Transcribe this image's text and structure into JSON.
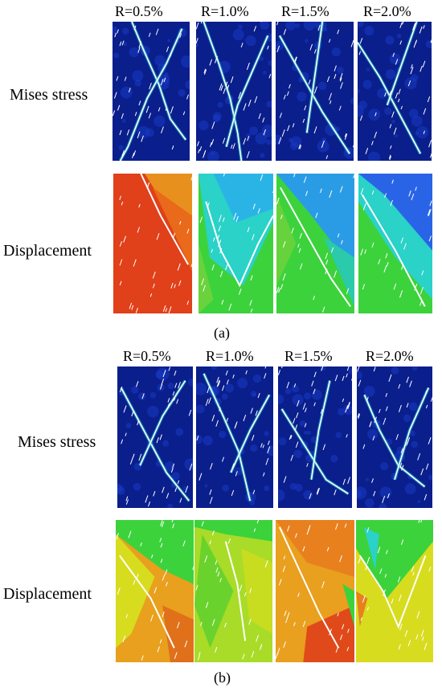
{
  "figure": {
    "panels": [
      {
        "caption": "(a)",
        "columns": [
          "R=0.5%",
          "R=1.0%",
          "R=1.5%",
          "R=2.0%"
        ],
        "rows": [
          {
            "label": "Mises stress",
            "colormap": "stress"
          },
          {
            "label": "Displacement",
            "colormap": "displacement"
          }
        ]
      },
      {
        "caption": "(b)",
        "columns": [
          "R=0.5%",
          "R=1.0%",
          "R=1.5%",
          "R=2.0%"
        ],
        "rows": [
          {
            "label": "Mises stress",
            "colormap": "stress"
          },
          {
            "label": "Displacement",
            "colormap": "displacement"
          }
        ]
      }
    ],
    "colors": {
      "stress_base": "#0a1e8c",
      "stress_hot": "#1ec8c8",
      "disp_red": "#e0401a",
      "disp_orange": "#e8901e",
      "disp_yellow": "#d8dc1e",
      "disp_green": "#3cd23c",
      "disp_cyan": "#2ad2c8",
      "disp_blue": "#2a64e6"
    }
  }
}
